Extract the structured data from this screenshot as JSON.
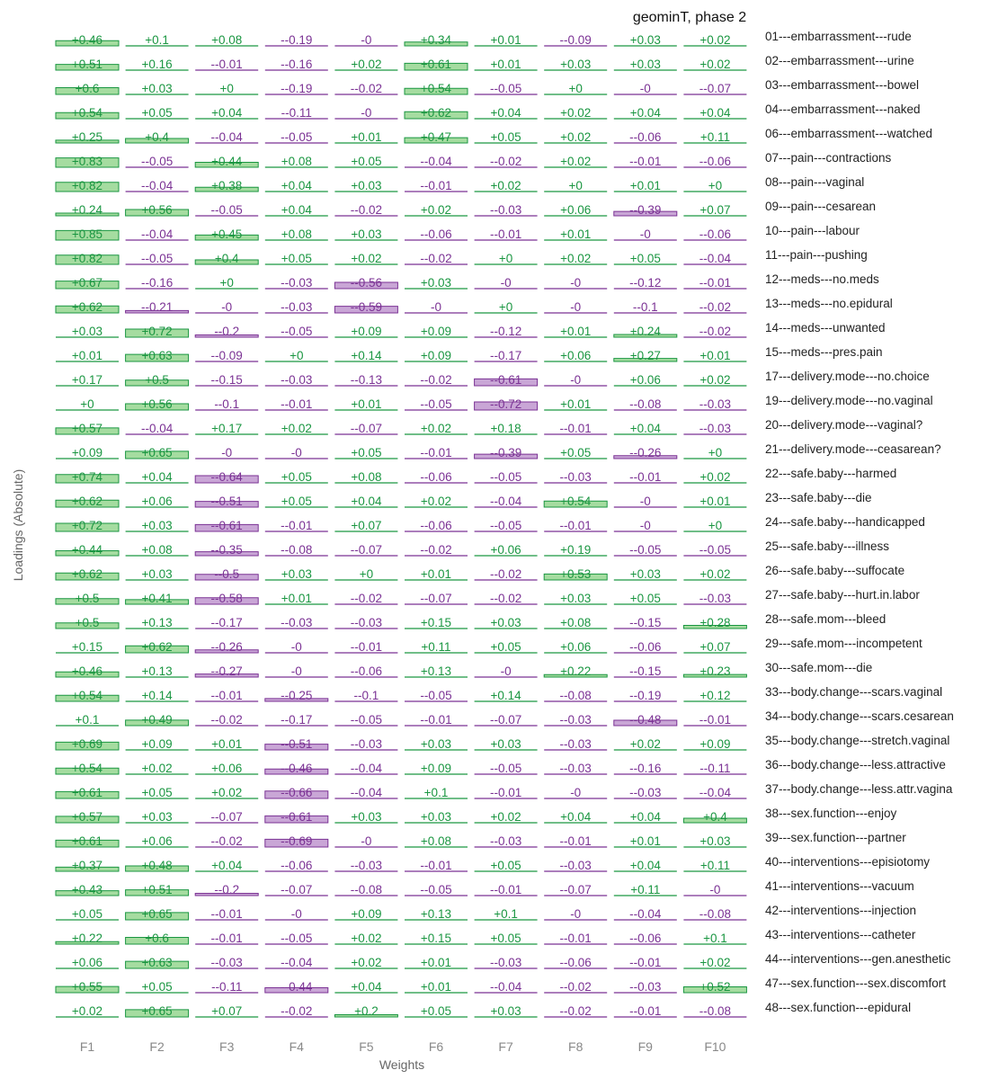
{
  "chart_data": {
    "type": "heatmap",
    "title": "geominT, phase 2",
    "xlabel": "Weights",
    "ylabel": "Loadings (Absolute)",
    "colors": {
      "positive_fill": "#a5dca0",
      "positive_stroke": "#1a9641",
      "positive_text": "#1a9641",
      "negative_fill": "#c9a6d6",
      "negative_stroke": "#7b3294",
      "negative_text": "#7b3294",
      "baseline": "#cccccc"
    },
    "highlight_threshold": 0.2,
    "columns": [
      "F1",
      "F2",
      "F3",
      "F4",
      "F5",
      "F6",
      "F7",
      "F8",
      "F9",
      "F10"
    ],
    "rows": [
      {
        "label": "01---embarrassment---rude",
        "values": [
          0.46,
          0.1,
          0.08,
          -0.19,
          -0.0,
          0.34,
          0.01,
          -0.09,
          0.03,
          0.02
        ]
      },
      {
        "label": "02---embarrassment---urine",
        "values": [
          0.51,
          0.16,
          -0.01,
          -0.16,
          0.02,
          0.61,
          0.01,
          0.03,
          0.03,
          0.02
        ]
      },
      {
        "label": "03---embarrassment---bowel",
        "values": [
          0.6,
          0.03,
          0.0,
          -0.19,
          -0.02,
          0.54,
          -0.05,
          0.0,
          -0.0,
          -0.07
        ]
      },
      {
        "label": "04---embarrassment---naked",
        "values": [
          0.54,
          0.05,
          0.04,
          -0.11,
          -0.0,
          0.62,
          0.04,
          0.02,
          0.04,
          0.04
        ]
      },
      {
        "label": "06---embarrassment---watched",
        "values": [
          0.25,
          0.4,
          -0.04,
          -0.05,
          0.01,
          0.47,
          0.05,
          0.02,
          -0.06,
          0.11
        ]
      },
      {
        "label": "07---pain---contractions",
        "values": [
          0.83,
          -0.05,
          0.44,
          0.08,
          0.05,
          -0.04,
          -0.02,
          0.02,
          -0.01,
          -0.06
        ]
      },
      {
        "label": "08---pain---vaginal",
        "values": [
          0.82,
          -0.04,
          0.38,
          0.04,
          0.03,
          -0.01,
          0.02,
          0.0,
          0.01,
          0.0
        ]
      },
      {
        "label": "09---pain---cesarean",
        "values": [
          0.24,
          0.56,
          -0.05,
          0.04,
          -0.02,
          0.02,
          -0.03,
          0.06,
          -0.39,
          0.07
        ]
      },
      {
        "label": "10---pain---labour",
        "values": [
          0.85,
          -0.04,
          0.45,
          0.08,
          0.03,
          -0.06,
          -0.01,
          0.01,
          -0.0,
          -0.06
        ]
      },
      {
        "label": "11---pain---pushing",
        "values": [
          0.82,
          -0.05,
          0.4,
          0.05,
          0.02,
          -0.02,
          0.0,
          0.02,
          0.05,
          -0.04
        ]
      },
      {
        "label": "12---meds---no.meds",
        "values": [
          0.67,
          -0.16,
          0.0,
          -0.03,
          -0.56,
          0.03,
          -0.0,
          -0.0,
          -0.12,
          -0.01
        ]
      },
      {
        "label": "13---meds---no.epidural",
        "values": [
          0.62,
          -0.21,
          -0.0,
          -0.03,
          -0.59,
          -0.0,
          0.0,
          -0.0,
          -0.1,
          -0.02
        ]
      },
      {
        "label": "14---meds---unwanted",
        "values": [
          0.03,
          0.72,
          -0.2,
          -0.05,
          0.09,
          0.09,
          -0.12,
          0.01,
          0.24,
          -0.02
        ]
      },
      {
        "label": "15---meds---pres.pain",
        "values": [
          0.01,
          0.63,
          -0.09,
          0.0,
          0.14,
          0.09,
          -0.17,
          0.06,
          0.27,
          0.01
        ]
      },
      {
        "label": "17---delivery.mode---no.choice",
        "values": [
          0.17,
          0.5,
          -0.15,
          -0.03,
          -0.13,
          -0.02,
          -0.61,
          -0.0,
          0.06,
          0.02
        ]
      },
      {
        "label": "19---delivery.mode---no.vaginal",
        "values": [
          0.0,
          0.56,
          -0.1,
          -0.01,
          0.01,
          -0.05,
          -0.72,
          0.01,
          -0.08,
          -0.03
        ]
      },
      {
        "label": "20---delivery.mode---vaginal?",
        "values": [
          0.57,
          -0.04,
          0.17,
          0.02,
          -0.07,
          0.02,
          0.18,
          -0.01,
          0.04,
          -0.03
        ]
      },
      {
        "label": "21---delivery.mode---ceasarean?",
        "values": [
          0.09,
          0.65,
          -0.0,
          -0.0,
          0.05,
          -0.01,
          -0.39,
          0.05,
          -0.26,
          0.0
        ]
      },
      {
        "label": "22---safe.baby---harmed",
        "values": [
          0.74,
          0.04,
          -0.64,
          0.05,
          0.08,
          -0.06,
          -0.05,
          -0.03,
          -0.01,
          0.02
        ]
      },
      {
        "label": "23---safe.baby---die",
        "values": [
          0.62,
          0.06,
          -0.51,
          0.05,
          0.04,
          0.02,
          -0.04,
          0.54,
          -0.0,
          0.01
        ]
      },
      {
        "label": "24---safe.baby---handicapped",
        "values": [
          0.72,
          0.03,
          -0.61,
          -0.01,
          0.07,
          -0.06,
          -0.05,
          -0.01,
          -0.0,
          0.0
        ]
      },
      {
        "label": "25---safe.baby---illness",
        "values": [
          0.44,
          0.08,
          -0.35,
          -0.08,
          -0.07,
          -0.02,
          0.06,
          0.19,
          -0.05,
          -0.05
        ]
      },
      {
        "label": "26---safe.baby---suffocate",
        "values": [
          0.62,
          0.03,
          -0.5,
          0.03,
          0.0,
          0.01,
          -0.02,
          0.53,
          0.03,
          0.02
        ]
      },
      {
        "label": "27---safe.baby---hurt.in.labor",
        "values": [
          0.5,
          0.41,
          -0.58,
          0.01,
          -0.02,
          -0.07,
          -0.02,
          0.03,
          0.05,
          -0.03
        ]
      },
      {
        "label": "28---safe.mom---bleed",
        "values": [
          0.5,
          0.13,
          -0.17,
          -0.03,
          -0.03,
          0.15,
          0.03,
          0.08,
          -0.15,
          0.28
        ]
      },
      {
        "label": "29---safe.mom---incompetent",
        "values": [
          0.15,
          0.62,
          -0.26,
          -0.0,
          -0.01,
          0.11,
          0.05,
          0.06,
          -0.06,
          0.07
        ]
      },
      {
        "label": "30---safe.mom---die",
        "values": [
          0.46,
          0.13,
          -0.27,
          -0.0,
          -0.06,
          0.13,
          -0.0,
          0.22,
          -0.15,
          0.23
        ]
      },
      {
        "label": "33---body.change---scars.vaginal",
        "values": [
          0.54,
          0.14,
          -0.01,
          -0.25,
          -0.1,
          -0.05,
          0.14,
          -0.08,
          -0.19,
          0.12
        ]
      },
      {
        "label": "34---body.change---scars.cesarean",
        "values": [
          0.1,
          0.49,
          -0.02,
          -0.17,
          -0.05,
          -0.01,
          -0.07,
          -0.03,
          -0.48,
          -0.01
        ]
      },
      {
        "label": "35---body.change---stretch.vaginal",
        "values": [
          0.69,
          0.09,
          0.01,
          -0.51,
          -0.03,
          0.03,
          0.03,
          -0.03,
          0.02,
          0.09
        ]
      },
      {
        "label": "36---body.change---less.attractive",
        "values": [
          0.54,
          0.02,
          0.06,
          -0.46,
          -0.04,
          0.09,
          -0.05,
          -0.03,
          -0.16,
          -0.11
        ]
      },
      {
        "label": "37---body.change---less.attr.vagina",
        "values": [
          0.61,
          0.05,
          0.02,
          -0.66,
          -0.04,
          0.1,
          -0.01,
          -0.0,
          -0.03,
          -0.04
        ]
      },
      {
        "label": "38---sex.function---enjoy",
        "values": [
          0.57,
          0.03,
          -0.07,
          -0.61,
          0.03,
          0.03,
          0.02,
          0.04,
          0.04,
          0.4
        ]
      },
      {
        "label": "39---sex.function---partner",
        "values": [
          0.61,
          0.06,
          -0.02,
          -0.69,
          -0.0,
          0.08,
          -0.03,
          -0.01,
          0.01,
          0.03
        ]
      },
      {
        "label": "40---interventions---episiotomy",
        "values": [
          0.37,
          0.48,
          0.04,
          -0.06,
          -0.03,
          -0.01,
          0.05,
          -0.03,
          0.04,
          0.11
        ]
      },
      {
        "label": "41---interventions---vacuum",
        "values": [
          0.43,
          0.51,
          -0.2,
          -0.07,
          -0.08,
          -0.05,
          -0.01,
          -0.07,
          0.11,
          -0.0
        ]
      },
      {
        "label": "42---interventions---injection",
        "values": [
          0.05,
          0.65,
          -0.01,
          -0.0,
          0.09,
          0.13,
          0.1,
          -0.0,
          -0.04,
          -0.08
        ]
      },
      {
        "label": "43---interventions---catheter",
        "values": [
          0.22,
          0.6,
          -0.01,
          -0.05,
          0.02,
          0.15,
          0.05,
          -0.01,
          -0.06,
          0.1
        ]
      },
      {
        "label": "44---interventions---gen.anesthetic",
        "values": [
          0.06,
          0.63,
          -0.03,
          -0.04,
          0.02,
          0.01,
          -0.03,
          -0.06,
          -0.01,
          0.02
        ]
      },
      {
        "label": "47---sex.function---sex.discomfort",
        "values": [
          0.55,
          0.05,
          -0.11,
          -0.44,
          0.04,
          0.01,
          -0.04,
          -0.02,
          -0.03,
          0.52
        ]
      },
      {
        "label": "48---sex.function---epidural",
        "values": [
          0.02,
          0.65,
          0.07,
          -0.02,
          0.2,
          0.05,
          0.03,
          -0.02,
          -0.01,
          -0.08
        ]
      }
    ]
  }
}
